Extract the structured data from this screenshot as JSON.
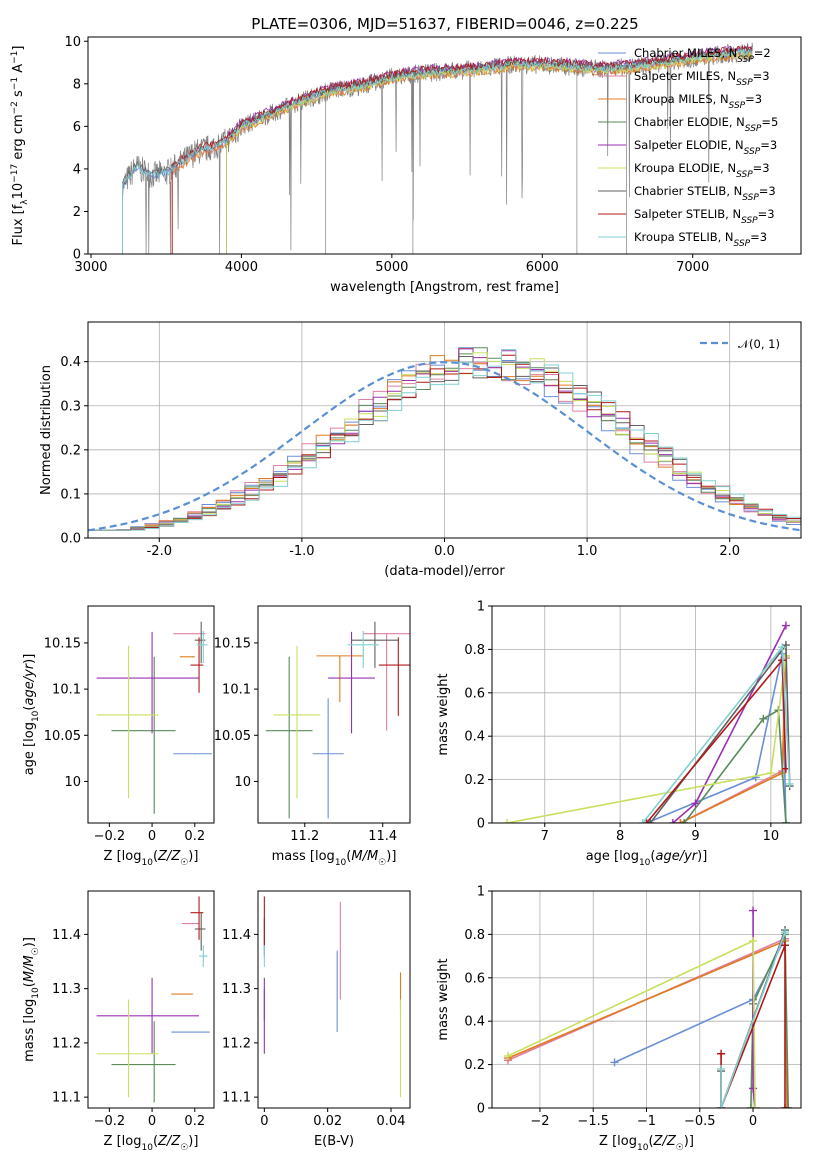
{
  "figure_title": "PLATE=0306, MJD=51637, FIBERID=0046, z=0.225",
  "colors": {
    "Chabrier MILES": "#6a8fd8",
    "Salpeter MILES": "#e080a0",
    "Kroupa MILES": "#e07a20",
    "Chabrier ELODIE": "#5a8a5a",
    "Salpeter ELODIE": "#9a30b0",
    "Kroupa ELODIE": "#c8e060",
    "Chabrier STELIB": "#606060",
    "Salpeter STELIB": "#b01818",
    "Kroupa STELIB": "#80d0d0",
    "data": "#808080",
    "normal": "#5b8fd5"
  },
  "chart_data": [
    {
      "id": "spectrum",
      "type": "line",
      "title": "PLATE=0306, MJD=51637, FIBERID=0046, z=0.225",
      "xlabel": "wavelength [Angstrom, rest frame]",
      "ylabel": "Flux [f_λ10^-17 erg cm^-2 s^-1 A^-1]",
      "xlim": [
        2980,
        7720
      ],
      "ylim": [
        0,
        10.2
      ],
      "xticks": [
        3000,
        4000,
        5000,
        6000,
        7000
      ],
      "yticks": [
        0,
        2,
        4,
        6,
        8,
        10
      ],
      "legend_position": "upper-right",
      "legend": [
        {
          "name": "Chabrier MILES, N_SSP=2",
          "label": "Chabrier MILES, N",
          "sub": "SSP",
          "tail": "=2",
          "key": "Chabrier MILES"
        },
        {
          "name": "Salpeter MILES, N_SSP=3",
          "label": "Salpeter MILES, N",
          "sub": "SSP",
          "tail": "=3",
          "key": "Salpeter MILES"
        },
        {
          "name": "Kroupa MILES, N_SSP=3",
          "label": "Kroupa MILES, N",
          "sub": "SSP",
          "tail": "=3",
          "key": "Kroupa MILES"
        },
        {
          "name": "Chabrier ELODIE, N_SSP=5",
          "label": "Chabrier ELODIE, N",
          "sub": "SSP",
          "tail": "=5",
          "key": "Chabrier ELODIE"
        },
        {
          "name": "Salpeter ELODIE, N_SSP=3",
          "label": "Salpeter ELODIE, N",
          "sub": "SSP",
          "tail": "=3",
          "key": "Salpeter ELODIE"
        },
        {
          "name": "Kroupa ELODIE, N_SSP=3",
          "label": "Kroupa ELODIE, N",
          "sub": "SSP",
          "tail": "=3",
          "key": "Kroupa ELODIE"
        },
        {
          "name": "Chabrier STELIB, N_SSP=3",
          "label": "Chabrier STELIB, N",
          "sub": "SSP",
          "tail": "=3",
          "key": "Chabrier STELIB"
        },
        {
          "name": "Salpeter STELIB, N_SSP=3",
          "label": "Salpeter STELIB, N",
          "sub": "SSP",
          "tail": "=3",
          "key": "Salpeter STELIB"
        },
        {
          "name": "Kroupa STELIB, N_SSP=3",
          "label": "Kroupa STELIB, N",
          "sub": "SSP",
          "tail": "=3",
          "key": "Kroupa STELIB"
        }
      ],
      "continuum_x": [
        3210,
        3300,
        3400,
        3500,
        3600,
        3700,
        3800,
        3900,
        4000,
        4200,
        4400,
        4600,
        4800,
        5000,
        5200,
        5400,
        5600,
        5800,
        6000,
        6200,
        6400,
        6600,
        6800,
        7000,
        7200,
        7400
      ],
      "continuum_y": [
        3.2,
        4.1,
        3.7,
        3.8,
        4.3,
        4.8,
        5.0,
        5.3,
        6.0,
        6.6,
        7.2,
        7.7,
        7.9,
        8.3,
        8.5,
        8.6,
        8.7,
        8.9,
        8.9,
        8.8,
        8.7,
        8.8,
        9.0,
        9.2,
        9.4,
        9.5
      ],
      "model_start": {
        "Chabrier MILES": 3210,
        "Salpeter MILES": 3540,
        "Kroupa MILES": 3540,
        "Chabrier ELODIE": 3900,
        "Salpeter ELODIE": 3900,
        "Kroupa ELODIE": 3900,
        "Chabrier STELIB": 3210,
        "Salpeter STELIB": 3540,
        "Kroupa STELIB": 3210
      },
      "model_offset": {
        "Chabrier MILES": 0.0,
        "Salpeter MILES": -0.1,
        "Kroupa MILES": -0.15,
        "Chabrier ELODIE": 0.05,
        "Salpeter ELODIE": 0.2,
        "Kroupa ELODIE": -0.1,
        "Chabrier STELIB": 0.1,
        "Salpeter STELIB": 0.15,
        "Kroupa STELIB": 0.0
      }
    },
    {
      "id": "residuals",
      "type": "histogram",
      "xlabel": "(data-model)/error",
      "ylabel": "Normed distribution",
      "xlim": [
        -2.5,
        2.5
      ],
      "ylim": [
        0,
        0.49
      ],
      "xticks": [
        -2,
        -1,
        0,
        1,
        2
      ],
      "yticks": [
        0.0,
        0.1,
        0.2,
        0.3,
        0.4
      ],
      "grid": true,
      "legend_position": "upper-right",
      "legend": [
        {
          "name": "𝒩(0, 1)",
          "key": "normal"
        }
      ],
      "normal_mean": 0,
      "normal_sigma": 1,
      "bin_width": 0.1,
      "hist_mean": 0.28,
      "hist_sigma": 1.0,
      "hist_tail": 0.018
    },
    {
      "id": "age_vs_Z",
      "type": "errorbar",
      "xlabel": "Z [log10(Z/Z☉)]",
      "ylabel": "age [log10(age/yr)]",
      "xlim": [
        -0.3,
        0.29
      ],
      "ylim": [
        9.955,
        10.19
      ],
      "xticks": [
        -0.2,
        0.0,
        0.2
      ],
      "yticks": [
        10.0,
        10.05,
        10.1,
        10.15
      ],
      "points": [
        {
          "key": "Chabrier MILES",
          "x": 0.2,
          "xerr": [
            0.1,
            0.08
          ],
          "y": 10.03,
          "yerr": [
            0.0,
            0.0
          ]
        },
        {
          "key": "Salpeter MILES",
          "x": 0.19,
          "xerr": [
            0.09,
            0.06
          ],
          "y": 10.16,
          "yerr": [
            0.0,
            0.0
          ]
        },
        {
          "key": "Kroupa MILES",
          "x": 0.19,
          "xerr": [
            0.06,
            0.01
          ],
          "y": 10.135,
          "yerr": [
            0.0,
            0.0
          ]
        },
        {
          "key": "Chabrier ELODIE",
          "x": 0.01,
          "xerr": [
            0.2,
            0.1
          ],
          "y": 10.055,
          "yerr": [
            0.09,
            0.08
          ]
        },
        {
          "key": "Salpeter ELODIE",
          "x": 0.0,
          "xerr": [
            0.26,
            0.22
          ],
          "y": 10.112,
          "yerr": [
            0.06,
            0.05
          ]
        },
        {
          "key": "Kroupa ELODIE",
          "x": -0.11,
          "xerr": [
            0.15,
            0.14
          ],
          "y": 10.072,
          "yerr": [
            0.09,
            0.075
          ]
        },
        {
          "key": "Chabrier STELIB",
          "x": 0.23,
          "xerr": [
            0.03,
            0.02
          ],
          "y": 10.153,
          "yerr": [
            0.025,
            0.02
          ]
        },
        {
          "key": "Salpeter STELIB",
          "x": 0.22,
          "xerr": [
            0.04,
            0.02
          ],
          "y": 10.126,
          "yerr": [
            0.03,
            0.03
          ]
        },
        {
          "key": "Kroupa STELIB",
          "x": 0.24,
          "xerr": [
            0.03,
            0.02
          ],
          "y": 10.148,
          "yerr": [
            0.02,
            0.015
          ]
        }
      ]
    },
    {
      "id": "age_vs_mass",
      "type": "errorbar",
      "xlabel": "mass [log10(M/M☉)]",
      "ylabel": "",
      "xlim": [
        11.08,
        11.47
      ],
      "ylim": [
        9.955,
        10.19
      ],
      "xticks": [
        11.2,
        11.4
      ],
      "yticks": [
        10.0,
        10.05,
        10.1,
        10.15
      ],
      "points": [
        {
          "key": "Chabrier MILES",
          "x": 11.26,
          "xerr": [
            0.04,
            0.04
          ],
          "y": 10.03,
          "yerr": [
            0.07,
            0.06
          ]
        },
        {
          "key": "Salpeter MILES",
          "x": 11.41,
          "xerr": [
            0.06,
            0.06
          ],
          "y": 10.16,
          "yerr": [
            0.105,
            0.0
          ]
        },
        {
          "key": "Kroupa MILES",
          "x": 11.29,
          "xerr": [
            0.06,
            0.06
          ],
          "y": 10.136,
          "yerr": [
            0.05,
            0.0
          ]
        },
        {
          "key": "Chabrier ELODIE",
          "x": 11.16,
          "xerr": [
            0.06,
            0.06
          ],
          "y": 10.055,
          "yerr": [
            0.095,
            0.08
          ]
        },
        {
          "key": "Salpeter ELODIE",
          "x": 11.32,
          "xerr": [
            0.06,
            0.06
          ],
          "y": 10.112,
          "yerr": [
            0.06,
            0.05
          ]
        },
        {
          "key": "Kroupa ELODIE",
          "x": 11.18,
          "xerr": [
            0.06,
            0.06
          ],
          "y": 10.072,
          "yerr": [
            0.09,
            0.075
          ]
        },
        {
          "key": "Chabrier STELIB",
          "x": 11.38,
          "xerr": [
            0.06,
            0.06
          ],
          "y": 10.153,
          "yerr": [
            0.03,
            0.02
          ]
        },
        {
          "key": "Salpeter STELIB",
          "x": 11.44,
          "xerr": [
            0.05,
            0.05
          ],
          "y": 10.126,
          "yerr": [
            0.055,
            0.03
          ]
        },
        {
          "key": "Kroupa STELIB",
          "x": 11.35,
          "xerr": [
            0.04,
            0.04
          ],
          "y": 10.148,
          "yerr": [
            0.025,
            0.015
          ]
        }
      ]
    },
    {
      "id": "weight_vs_age",
      "type": "line",
      "xlabel": "age [log10(age/yr)]",
      "ylabel": "mass weight",
      "xlim": [
        6.3,
        10.4
      ],
      "ylim": [
        0,
        1.0
      ],
      "xticks": [
        7,
        8,
        9,
        10
      ],
      "yticks": [
        0.0,
        0.2,
        0.4,
        0.6,
        0.8,
        1.0
      ],
      "grid": true,
      "series": [
        {
          "key": "Chabrier MILES",
          "x": [
            8.35,
            9.8,
            10.15,
            10.2
          ],
          "y": [
            0.0,
            0.21,
            0.78,
            0.0
          ]
        },
        {
          "key": "Salpeter MILES",
          "x": [
            8.8,
            10.15,
            10.2
          ],
          "y": [
            0.0,
            0.24,
            0.76
          ]
        },
        {
          "key": "Kroupa MILES",
          "x": [
            8.8,
            10.15,
            10.2
          ],
          "y": [
            0.0,
            0.23,
            0.77
          ]
        },
        {
          "key": "Chabrier ELODIE",
          "x": [
            8.85,
            9.9,
            10.1,
            10.2
          ],
          "y": [
            0.0,
            0.48,
            0.52,
            0.0
          ]
        },
        {
          "key": "Salpeter ELODIE",
          "x": [
            8.7,
            9.0,
            10.2
          ],
          "y": [
            0.0,
            0.09,
            0.91
          ]
        },
        {
          "key": "Kroupa ELODIE",
          "x": [
            6.5,
            10.0,
            10.2
          ],
          "y": [
            0.0,
            0.23,
            0.77
          ]
        },
        {
          "key": "Chabrier STELIB",
          "x": [
            8.4,
            10.2,
            10.25
          ],
          "y": [
            0.0,
            0.82,
            0.17
          ]
        },
        {
          "key": "Salpeter STELIB",
          "x": [
            8.35,
            10.15,
            10.2
          ],
          "y": [
            0.0,
            0.75,
            0.25
          ]
        },
        {
          "key": "Kroupa STELIB",
          "x": [
            8.3,
            10.15,
            10.25
          ],
          "y": [
            0.0,
            0.81,
            0.18
          ]
        }
      ]
    },
    {
      "id": "mass_vs_Z",
      "type": "errorbar",
      "xlabel": "Z [log10(Z/Z☉)]",
      "ylabel": "mass [log10(M/M☉)]",
      "xlim": [
        -0.3,
        0.29
      ],
      "ylim": [
        11.08,
        11.48
      ],
      "xticks": [
        -0.2,
        0.0,
        0.2
      ],
      "yticks": [
        11.1,
        11.2,
        11.3,
        11.4
      ],
      "points": [
        {
          "key": "Chabrier MILES",
          "x": 0.19,
          "xerr": [
            0.1,
            0.08
          ],
          "y": 11.22,
          "yerr": [
            0.0,
            0.0
          ]
        },
        {
          "key": "Salpeter MILES",
          "x": 0.2,
          "xerr": [
            0.06,
            0.02
          ],
          "y": 11.42,
          "yerr": [
            0.0,
            0.0
          ]
        },
        {
          "key": "Kroupa MILES",
          "x": 0.19,
          "xerr": [
            0.1,
            0.0
          ],
          "y": 11.29,
          "yerr": [
            0.0,
            0.0
          ]
        },
        {
          "key": "Chabrier ELODIE",
          "x": 0.01,
          "xerr": [
            0.2,
            0.1
          ],
          "y": 11.16,
          "yerr": [
            0.07,
            0.08
          ]
        },
        {
          "key": "Salpeter ELODIE",
          "x": 0.0,
          "xerr": [
            0.26,
            0.22
          ],
          "y": 11.25,
          "yerr": [
            0.07,
            0.07
          ]
        },
        {
          "key": "Kroupa ELODIE",
          "x": -0.11,
          "xerr": [
            0.15,
            0.14
          ],
          "y": 11.18,
          "yerr": [
            0.08,
            0.1
          ]
        },
        {
          "key": "Chabrier STELIB",
          "x": 0.23,
          "xerr": [
            0.03,
            0.02
          ],
          "y": 11.41,
          "yerr": [
            0.04,
            0.03
          ]
        },
        {
          "key": "Salpeter STELIB",
          "x": 0.22,
          "xerr": [
            0.04,
            0.02
          ],
          "y": 11.44,
          "yerr": [
            0.05,
            0.03
          ]
        },
        {
          "key": "Kroupa STELIB",
          "x": 0.24,
          "xerr": [
            0.02,
            0.02
          ],
          "y": 11.36,
          "yerr": [
            0.02,
            0.02
          ]
        }
      ]
    },
    {
      "id": "mass_vs_ebv",
      "type": "errorbar",
      "xlabel": "E(B-V)",
      "ylabel": "",
      "xlim": [
        -0.002,
        0.046
      ],
      "ylim": [
        11.08,
        11.48
      ],
      "xticks": [
        0.0,
        0.02,
        0.04
      ],
      "yticks": [
        11.1,
        11.2,
        11.3,
        11.4
      ],
      "points": [
        {
          "key": "Chabrier MILES",
          "x": 0.023,
          "xerr": [
            0,
            0
          ],
          "y": 11.3,
          "yerr": [
            0.08,
            0.07
          ]
        },
        {
          "key": "Salpeter MILES",
          "x": 0.024,
          "xerr": [
            0,
            0
          ],
          "y": 11.38,
          "yerr": [
            0.1,
            0.08
          ]
        },
        {
          "key": "Kroupa MILES",
          "x": 0.043,
          "xerr": [
            0,
            0
          ],
          "y": 11.29,
          "yerr": [
            0.03,
            0.04
          ]
        },
        {
          "key": "Chabrier ELODIE",
          "x": 0.0,
          "xerr": [
            0,
            0
          ],
          "y": 11.27,
          "yerr": [
            0.03,
            0.03
          ]
        },
        {
          "key": "Salpeter ELODIE",
          "x": 0.0,
          "xerr": [
            0,
            0
          ],
          "y": 11.25,
          "yerr": [
            0.07,
            0.07
          ]
        },
        {
          "key": "Kroupa ELODIE",
          "x": 0.043,
          "xerr": [
            0,
            0
          ],
          "y": 11.18,
          "yerr": [
            0.08,
            0.1
          ]
        },
        {
          "key": "Chabrier STELIB",
          "x": 0.0,
          "xerr": [
            0,
            0
          ],
          "y": 11.4,
          "yerr": [
            0.04,
            0.03
          ]
        },
        {
          "key": "Salpeter STELIB",
          "x": 0.0,
          "xerr": [
            0,
            0
          ],
          "y": 11.43,
          "yerr": [
            0.05,
            0.04
          ]
        },
        {
          "key": "Kroupa STELIB",
          "x": 0.0,
          "xerr": [
            0,
            0
          ],
          "y": 11.36,
          "yerr": [
            0.02,
            0.02
          ]
        }
      ]
    },
    {
      "id": "weight_vs_Z",
      "type": "line",
      "xlabel": "Z [log10(Z/Z☉)]",
      "ylabel": "mass weight",
      "xlim": [
        -2.45,
        0.45
      ],
      "ylim": [
        0,
        1.0
      ],
      "xticks": [
        -2.0,
        -1.5,
        -1.0,
        -0.5,
        0.0
      ],
      "yticks": [
        0.0,
        0.2,
        0.4,
        0.6,
        0.8,
        1.0
      ],
      "grid": true,
      "series": [
        {
          "key": "Chabrier MILES",
          "x": [
            -1.3,
            0.0,
            0.3
          ],
          "y": [
            0.21,
            0.5,
            0.78
          ]
        },
        {
          "key": "Salpeter MILES",
          "x": [
            -2.3,
            0.3,
            0.32
          ],
          "y": [
            0.22,
            0.78,
            0.0
          ]
        },
        {
          "key": "Kroupa MILES",
          "x": [
            -2.3,
            0.3,
            0.32
          ],
          "y": [
            0.23,
            0.77,
            0.0
          ]
        },
        {
          "key": "Chabrier ELODIE",
          "x": [
            -0.02,
            0.0,
            0.3,
            0.33
          ],
          "y": [
            0.0,
            0.48,
            0.8,
            0.0
          ]
        },
        {
          "key": "Salpeter ELODIE",
          "x": [
            0.0,
            0.0,
            0.02
          ],
          "y": [
            0.91,
            0.09,
            0.0
          ]
        },
        {
          "key": "Kroupa ELODIE",
          "x": [
            -2.3,
            0.0,
            0.02
          ],
          "y": [
            0.24,
            0.77,
            0.0
          ]
        },
        {
          "key": "Chabrier STELIB",
          "x": [
            -0.3,
            -0.3,
            0.3
          ],
          "y": [
            0.17,
            0.0,
            0.82
          ]
        },
        {
          "key": "Salpeter STELIB",
          "x": [
            -0.3,
            -0.3,
            0.3,
            0.3
          ],
          "y": [
            0.25,
            0.0,
            0.75,
            0.0
          ]
        },
        {
          "key": "Kroupa STELIB",
          "x": [
            -0.3,
            -0.3,
            0.3
          ],
          "y": [
            0.18,
            0.0,
            0.81
          ]
        }
      ]
    }
  ]
}
